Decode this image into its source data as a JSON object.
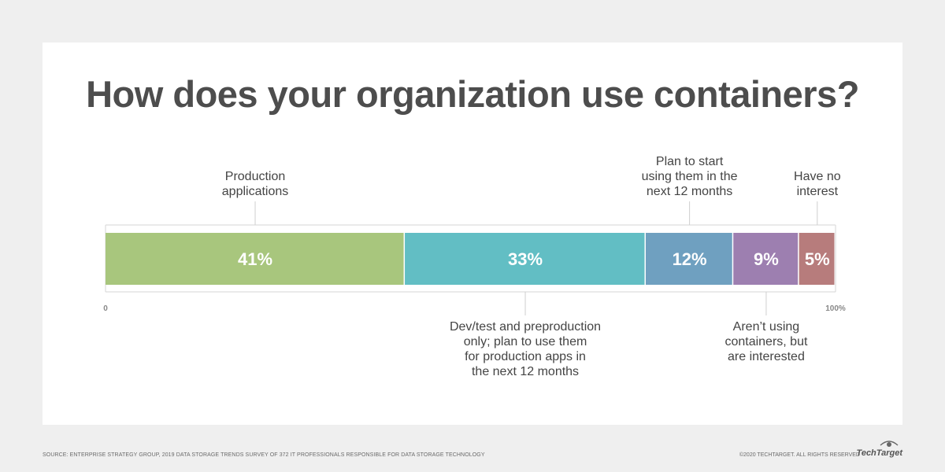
{
  "chart_data": {
    "type": "bar",
    "orientation": "horizontal-stacked",
    "title": "How does your organization use containers?",
    "segments": [
      {
        "name": "Production applications",
        "value": 41,
        "label": "41%",
        "color": "#a8c67d",
        "callout_lines": [
          "Production",
          "applications"
        ],
        "callout_side": "top"
      },
      {
        "name": "Dev/test and preproduction only; plan to use them for production apps in the next 12 months",
        "value": 33,
        "label": "33%",
        "color": "#62bec4",
        "callout_lines": [
          "Dev/test and preproduction",
          "only; plan to use them",
          "for production apps in",
          "the next 12 months"
        ],
        "callout_side": "bottom"
      },
      {
        "name": "Plan to start using them in the next 12 months",
        "value": 12,
        "label": "12%",
        "color": "#6fa0c0",
        "callout_lines": [
          "Plan to start",
          "using them in the",
          "next 12 months"
        ],
        "callout_side": "top"
      },
      {
        "name": "Aren’t using containers, but are interested",
        "value": 9,
        "label": "9%",
        "color": "#9d7fb0",
        "callout_lines": [
          "Aren’t using",
          "containers, but",
          "are interested"
        ],
        "callout_side": "bottom"
      },
      {
        "name": "Have no interest",
        "value": 5,
        "label": "5%",
        "color": "#b77c7c",
        "callout_lines": [
          "Have no",
          "interest"
        ],
        "callout_side": "top"
      }
    ],
    "xlim": [
      0,
      100
    ],
    "tick_labels": {
      "start": "0",
      "end": "100%"
    },
    "grid": false
  },
  "footer": {
    "source": "SOURCE: ENTERPRISE STRATEGY GROUP, 2019 DATA STORAGE TRENDS SURVEY OF 372 IT PROFESSIONALS RESPONSIBLE FOR DATA STORAGE TECHNOLOGY",
    "copyright": "©2020 TECHTARGET. ALL RIGHTS RESERVED",
    "brand": "TechTarget"
  }
}
